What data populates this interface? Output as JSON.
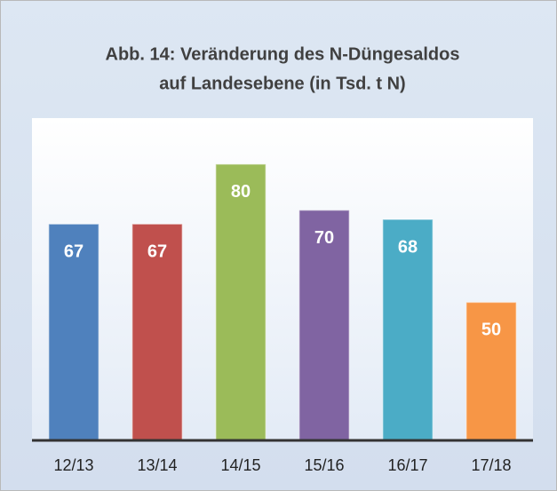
{
  "chart_data": {
    "type": "bar",
    "title": [
      "Abb. 14: Veränderung des N-Düngesaldos",
      "auf Landesebene (in Tsd. t N)"
    ],
    "categories": [
      "12/13",
      "13/14",
      "14/15",
      "15/16",
      "16/17",
      "17/18"
    ],
    "values": [
      67,
      67,
      80,
      70,
      68,
      50
    ],
    "colors": [
      "#4f81bd",
      "#c0504d",
      "#9bbb59",
      "#8064a2",
      "#4bacc6",
      "#f79646"
    ],
    "ylim": [
      20,
      90
    ]
  }
}
